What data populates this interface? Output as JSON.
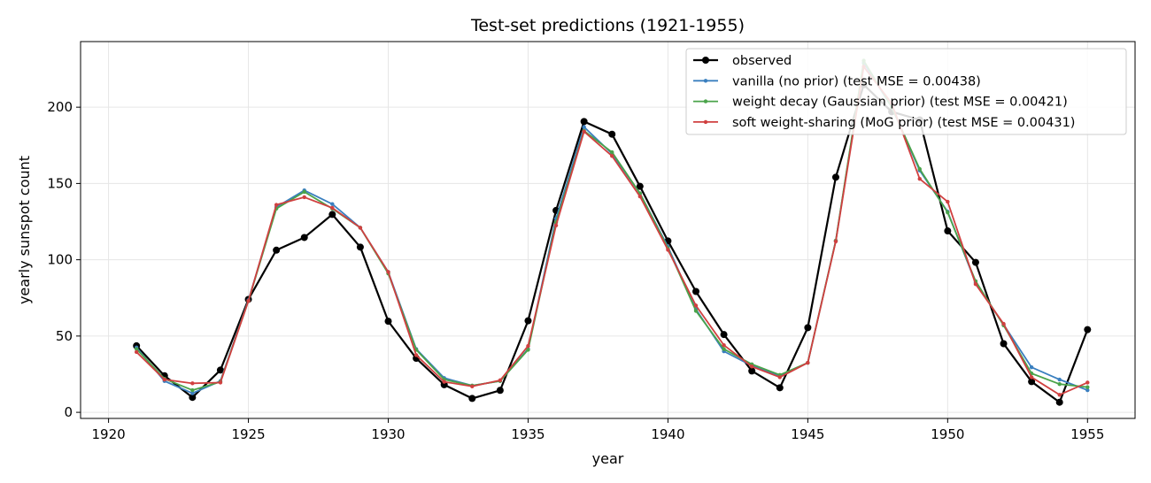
{
  "chart_data": {
    "type": "line",
    "title": "Test-set predictions (1921-1955)",
    "xlabel": "year",
    "ylabel": "yearly sunspot count",
    "xlim": [
      1919.0,
      1956.7
    ],
    "ylim": [
      -4,
      243
    ],
    "xticks": [
      1920,
      1925,
      1930,
      1935,
      1940,
      1945,
      1950,
      1955
    ],
    "yticks": [
      0,
      50,
      100,
      150,
      200
    ],
    "grid": true,
    "legend_position": "top-right",
    "x": [
      1921,
      1922,
      1923,
      1924,
      1925,
      1926,
      1927,
      1928,
      1929,
      1930,
      1931,
      1932,
      1933,
      1934,
      1935,
      1936,
      1937,
      1938,
      1939,
      1940,
      1941,
      1942,
      1943,
      1944,
      1945,
      1946,
      1947,
      1948,
      1949,
      1950,
      1951,
      1952,
      1953,
      1954,
      1955
    ],
    "series": [
      {
        "name": "observed",
        "color": "#000000",
        "values": [
          43.6,
          24.0,
          9.8,
          27.7,
          74.0,
          106.3,
          114.6,
          129.7,
          108.3,
          59.7,
          35.4,
          18.1,
          9.1,
          14.4,
          60.0,
          132.3,
          190.6,
          182.3,
          148.1,
          112.3,
          79.2,
          51.0,
          27.1,
          16.1,
          55.5,
          154.1,
          214.7,
          197.0,
          191.7,
          118.9,
          98.3,
          45.0,
          20.1,
          6.6,
          54.2
        ]
      },
      {
        "name": "vanilla (no prior)  (test MSE = 0.00438)",
        "color": "#3a7fbf",
        "values": [
          42.5,
          20.5,
          12.5,
          20.5,
          73.5,
          134.5,
          145.5,
          136.5,
          121.0,
          92.0,
          41.5,
          22.5,
          17.5,
          20.5,
          41.5,
          127.0,
          187.0,
          169.5,
          143.5,
          108.5,
          67.5,
          40.0,
          30.5,
          24.0,
          32.5,
          112.5,
          229.0,
          200.0,
          158.5,
          131.5,
          85.0,
          57.5,
          29.5,
          21.5,
          14.5
        ]
      },
      {
        "name": "weight decay (Gaussian prior)  (test MSE = 0.00421)",
        "color": "#4aa34a",
        "values": [
          41.5,
          22.0,
          14.5,
          20.0,
          73.0,
          133.5,
          144.5,
          133.5,
          121.0,
          91.0,
          41.0,
          21.5,
          17.5,
          20.5,
          41.0,
          124.5,
          184.5,
          170.5,
          143.5,
          107.5,
          66.5,
          41.5,
          31.5,
          24.5,
          32.5,
          112.5,
          230.5,
          200.0,
          159.5,
          131.0,
          86.0,
          57.0,
          25.5,
          18.5,
          16.5
        ]
      },
      {
        "name": "soft weight-sharing (MoG prior)  (test MSE = 0.00431)",
        "color": "#d04040",
        "values": [
          39.5,
          21.5,
          19.0,
          19.5,
          73.0,
          136.0,
          141.0,
          134.0,
          121.0,
          92.0,
          37.5,
          20.0,
          17.0,
          21.0,
          43.5,
          122.5,
          184.0,
          168.0,
          141.5,
          106.5,
          70.0,
          44.0,
          30.0,
          23.0,
          32.5,
          112.0,
          226.5,
          202.5,
          153.0,
          138.0,
          84.0,
          58.0,
          23.0,
          11.5,
          19.5
        ]
      }
    ]
  }
}
